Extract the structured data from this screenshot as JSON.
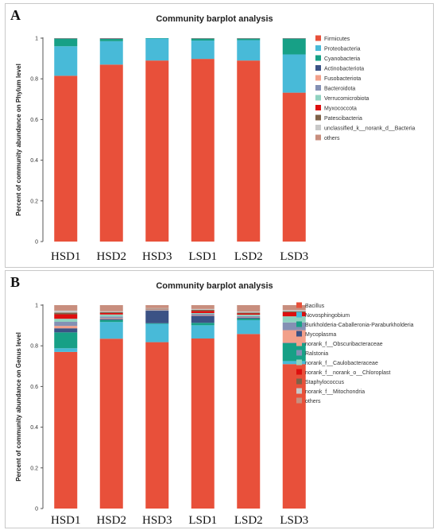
{
  "colors": [
    "#e8503a",
    "#48bad8",
    "#17a086",
    "#3b5285",
    "#f2a08a",
    "#8490b4",
    "#90d2c0",
    "#dd0f0f",
    "#7e6148",
    "#c8c8c8",
    "#c88e7e"
  ],
  "chart_data": [
    {
      "panel": "A",
      "type": "bar",
      "stacked": true,
      "title": "Community barplot analysis",
      "xlabel": "",
      "ylabel": "Percent of community abundance on Phylum level",
      "ylim": [
        0,
        1
      ],
      "yticks": [
        "0",
        "0.2",
        "0.4",
        "0.6",
        "0.8",
        "1"
      ],
      "categories": [
        "HSD1",
        "HSD2",
        "HSD3",
        "LSD1",
        "LSD2",
        "LSD3"
      ],
      "legend_position": "right",
      "series": [
        {
          "name": "Firmicutes",
          "values": [
            0.815,
            0.87,
            0.89,
            0.898,
            0.89,
            0.732
          ]
        },
        {
          "name": "Proteobacteria",
          "values": [
            0.145,
            0.115,
            0.108,
            0.09,
            0.1,
            0.188
          ]
        },
        {
          "name": "Cyanobacteria",
          "values": [
            0.038,
            0.012,
            0.002,
            0.01,
            0.008,
            0.078
          ]
        },
        {
          "name": "Actinobacteriota",
          "values": [
            0.001,
            0.001,
            0,
            0.001,
            0.001,
            0.001
          ]
        },
        {
          "name": "Fusobacteriota",
          "values": [
            0,
            0,
            0,
            0,
            0,
            0
          ]
        },
        {
          "name": "Bacteroidota",
          "values": [
            0,
            0,
            0,
            0,
            0,
            0
          ]
        },
        {
          "name": "Verrucomicrobiota",
          "values": [
            0,
            0,
            0,
            0,
            0,
            0
          ]
        },
        {
          "name": "Myxococcota",
          "values": [
            0,
            0,
            0,
            0,
            0,
            0
          ]
        },
        {
          "name": "Patescibacteria",
          "values": [
            0,
            0,
            0,
            0,
            0,
            0
          ]
        },
        {
          "name": "unclassified_k__norank_d__Bacteria",
          "values": [
            0,
            0,
            0,
            0,
            0,
            0
          ]
        },
        {
          "name": "others",
          "values": [
            0.001,
            0.002,
            0,
            0.001,
            0.001,
            0.001
          ]
        }
      ]
    },
    {
      "panel": "B",
      "type": "bar",
      "stacked": true,
      "title": "Community barplot analysis",
      "xlabel": "",
      "ylabel": "Percent of community abundance on Genus level",
      "ylim": [
        0,
        1
      ],
      "yticks": [
        "0",
        "0.2",
        "0.4",
        "0.6",
        "0.8",
        "1"
      ],
      "categories": [
        "HSD1",
        "HSD2",
        "HSD3",
        "LSD1",
        "LSD2",
        "LSD3"
      ],
      "legend_position": "right",
      "series": [
        {
          "name": "Bacillus",
          "values": [
            0.77,
            0.835,
            0.818,
            0.836,
            0.858,
            0.71
          ]
        },
        {
          "name": "Novosphingobium",
          "values": [
            0.018,
            0.082,
            0.09,
            0.065,
            0.068,
            0.015
          ]
        },
        {
          "name": "Burkholderia-Caballeronia-Paraburkholderia",
          "values": [
            0.078,
            0.01,
            0.003,
            0.012,
            0.008,
            0.088
          ]
        },
        {
          "name": "Mycoplasma",
          "values": [
            0.02,
            0.005,
            0.062,
            0.035,
            0.005,
            0.002
          ]
        },
        {
          "name": "norank_f__Obscuribacteraceae",
          "values": [
            0.012,
            0.004,
            0.001,
            0.003,
            0.002,
            0.062
          ]
        },
        {
          "name": "Ralstonia",
          "values": [
            0.02,
            0.008,
            0.002,
            0.006,
            0.005,
            0.038
          ]
        },
        {
          "name": "norank_f__Caulobacteraceae",
          "values": [
            0.015,
            0.01,
            0.003,
            0.004,
            0.007,
            0.03
          ]
        },
        {
          "name": "norank_f__norank_o__Chloroplast",
          "values": [
            0.022,
            0.007,
            0.002,
            0.01,
            0.006,
            0.02
          ]
        },
        {
          "name": "Staphylococcus",
          "values": [
            0.008,
            0.005,
            0.002,
            0.006,
            0.004,
            0.005
          ]
        },
        {
          "name": "norank_f__Mitochondria",
          "values": [
            0.01,
            0.004,
            0.002,
            0.004,
            0.006,
            0.006
          ]
        },
        {
          "name": "others",
          "values": [
            0.027,
            0.03,
            0.015,
            0.019,
            0.031,
            0.024
          ]
        }
      ]
    }
  ]
}
